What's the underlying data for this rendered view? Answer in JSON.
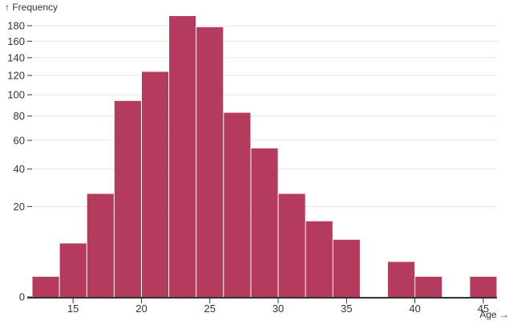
{
  "figure": {
    "y_axis_title": "↑ Frequency",
    "x_axis_title": "Age →"
  },
  "colors": {
    "bar": "#b43b5e",
    "grid": "rgba(0,0,0,0.10)",
    "axis": "#333333",
    "text": "#333333",
    "background": "#ffffff"
  },
  "chart_data": {
    "type": "bar",
    "subtype": "histogram",
    "title": "",
    "xlabel": "Age",
    "ylabel": "Frequency",
    "y_scale": "sqrt",
    "grid": true,
    "legend": false,
    "x_domain": [
      12,
      46
    ],
    "y_domain": [
      0,
      193
    ],
    "bin_width": 2,
    "x_ticks": [
      15,
      20,
      25,
      30,
      35,
      40,
      45
    ],
    "y_ticks": [
      0,
      20,
      40,
      60,
      80,
      100,
      120,
      140,
      160,
      180
    ],
    "bins": [
      {
        "x0": 12,
        "x1": 14,
        "count": 1
      },
      {
        "x0": 14,
        "x1": 16,
        "count": 7
      },
      {
        "x0": 16,
        "x1": 18,
        "count": 26
      },
      {
        "x0": 18,
        "x1": 20,
        "count": 94
      },
      {
        "x0": 20,
        "x1": 22,
        "count": 124
      },
      {
        "x0": 22,
        "x1": 24,
        "count": 193
      },
      {
        "x0": 24,
        "x1": 26,
        "count": 178
      },
      {
        "x0": 26,
        "x1": 28,
        "count": 83
      },
      {
        "x0": 28,
        "x1": 30,
        "count": 54
      },
      {
        "x0": 30,
        "x1": 32,
        "count": 26
      },
      {
        "x0": 32,
        "x1": 34,
        "count": 14
      },
      {
        "x0": 34,
        "x1": 36,
        "count": 8
      },
      {
        "x0": 36,
        "x1": 38,
        "count": 0
      },
      {
        "x0": 38,
        "x1": 40,
        "count": 3
      },
      {
        "x0": 40,
        "x1": 42,
        "count": 1
      },
      {
        "x0": 42,
        "x1": 44,
        "count": 0
      },
      {
        "x0": 44,
        "x1": 46,
        "count": 1
      }
    ]
  }
}
